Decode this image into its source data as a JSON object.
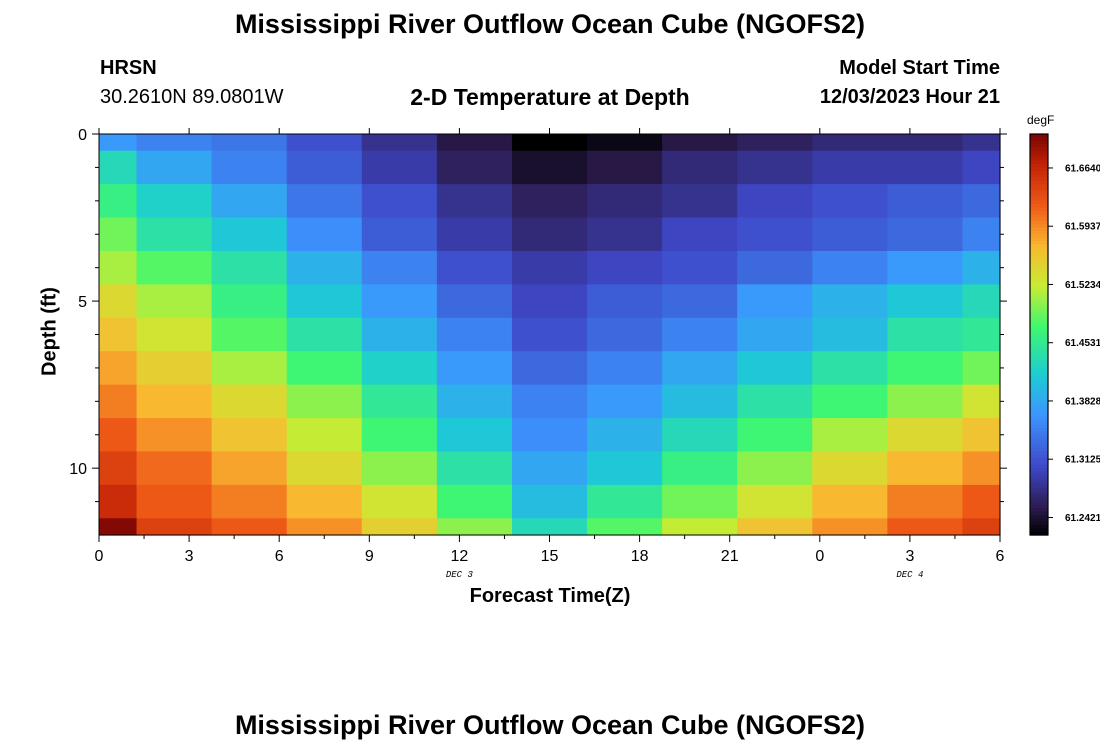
{
  "header": {
    "title": "Mississippi River Outflow Ocean Cube (NGOFS2)",
    "station": "HRSN",
    "coordinates": "30.2610N  89.0801W",
    "subtitle": "2-D Temperature at Depth",
    "model_start_label": "Model Start Time",
    "model_start_value": "12/03/2023 Hour 21"
  },
  "footer": {
    "title_repeat": "Mississippi River Outflow Ocean Cube (NGOFS2)"
  },
  "chart_data": {
    "type": "heatmap",
    "title": "2-D Temperature at Depth",
    "xlabel": "Forecast Time(Z)",
    "ylabel": "Depth (ft)",
    "x_tick_labels": [
      "0",
      "3",
      "6",
      "9",
      "12",
      "15",
      "18",
      "21",
      "0",
      "3",
      "6"
    ],
    "x_date_labels": [
      {
        "tick_index": 4,
        "label": "DEC 3"
      },
      {
        "tick_index": 9,
        "label": "DEC 4"
      }
    ],
    "x_hours": [
      0,
      2.5,
      5,
      7.5,
      10,
      12.5,
      15,
      17.5,
      20,
      22.5,
      25,
      27.5,
      30
    ],
    "y_tick_labels": [
      "0",
      "5",
      "10"
    ],
    "y_ticks": [
      0,
      5,
      10
    ],
    "ylim": [
      0,
      12
    ],
    "y_depth_edges": [
      0,
      0.5,
      1.5,
      2.5,
      3.5,
      4.5,
      5.5,
      6.5,
      7.5,
      8.5,
      9.5,
      10.5,
      11.5,
      12
    ],
    "colorbar": {
      "unit": "degF",
      "range": [
        61.221,
        61.705
      ],
      "tick_values": [
        61.2421,
        61.3125,
        61.3828,
        61.4531,
        61.5234,
        61.5937,
        61.664
      ],
      "tick_labels": [
        "61.2421",
        "61.3125",
        "61.3828",
        "61.4531",
        "61.5234",
        "61.5937",
        "61.6640"
      ]
    },
    "values": [
      [
        61.37,
        61.35,
        61.34,
        61.31,
        61.28,
        61.25,
        61.2,
        61.23,
        61.25,
        61.26,
        61.27,
        61.27,
        61.28
      ],
      [
        61.43,
        61.38,
        61.35,
        61.32,
        61.29,
        61.26,
        61.24,
        61.25,
        61.27,
        61.28,
        61.29,
        61.29,
        61.3
      ],
      [
        61.46,
        61.42,
        61.38,
        61.34,
        61.31,
        61.28,
        61.26,
        61.27,
        61.28,
        61.3,
        61.31,
        61.32,
        61.33
      ],
      [
        61.49,
        61.44,
        61.41,
        61.36,
        61.32,
        61.29,
        61.27,
        61.28,
        61.3,
        61.31,
        61.32,
        61.33,
        61.35
      ],
      [
        61.51,
        61.48,
        61.44,
        61.39,
        61.35,
        61.31,
        61.29,
        61.3,
        61.31,
        61.33,
        61.35,
        61.37,
        61.39
      ],
      [
        61.54,
        61.51,
        61.46,
        61.41,
        61.37,
        61.33,
        61.3,
        61.32,
        61.33,
        61.37,
        61.39,
        61.41,
        61.43
      ],
      [
        61.56,
        61.53,
        61.48,
        61.44,
        61.39,
        61.35,
        61.31,
        61.33,
        61.35,
        61.38,
        61.4,
        61.44,
        61.45
      ],
      [
        61.58,
        61.55,
        61.51,
        61.47,
        61.42,
        61.37,
        61.33,
        61.35,
        61.38,
        61.41,
        61.44,
        61.47,
        61.49
      ],
      [
        61.6,
        61.57,
        61.54,
        61.5,
        61.45,
        61.39,
        61.35,
        61.37,
        61.4,
        61.44,
        61.47,
        61.5,
        61.53
      ],
      [
        61.62,
        61.59,
        61.56,
        61.52,
        61.47,
        61.41,
        61.36,
        61.39,
        61.43,
        61.47,
        61.51,
        61.54,
        61.56
      ],
      [
        61.64,
        61.61,
        61.58,
        61.54,
        61.5,
        61.44,
        61.38,
        61.41,
        61.46,
        61.5,
        61.54,
        61.57,
        61.59
      ],
      [
        61.66,
        61.62,
        61.6,
        61.57,
        61.53,
        61.47,
        61.4,
        61.45,
        61.49,
        61.53,
        61.57,
        61.6,
        61.62
      ],
      [
        61.7,
        61.64,
        61.62,
        61.59,
        61.55,
        61.5,
        61.43,
        61.48,
        61.52,
        61.56,
        61.59,
        61.62,
        61.64
      ]
    ]
  }
}
